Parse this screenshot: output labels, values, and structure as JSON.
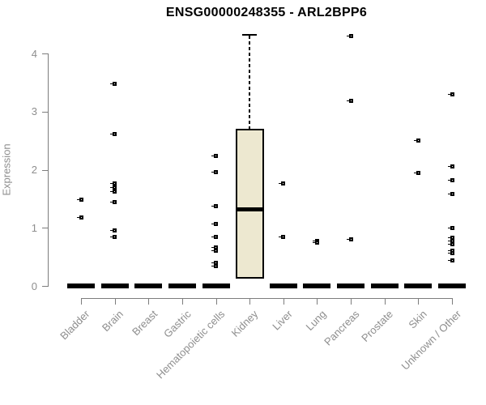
{
  "colors": {
    "title_text": "#000000",
    "axis_line": "#7d7d7d",
    "axis_text": "#8e8e8e",
    "box_fill": "#EDE8D0",
    "box_border": "#000000",
    "point": "#000000",
    "background": "#ffffff"
  },
  "chart_data": {
    "type": "boxplot",
    "title": "ENSG00000248355 - ARL2BPP6",
    "xlabel": "",
    "ylabel": "Expression",
    "ylim": [
      0,
      4.4
    ],
    "yticks": [
      0,
      1,
      2,
      3,
      4
    ],
    "grid": false,
    "legend": false,
    "categories": [
      "Bladder",
      "Brain",
      "Breast",
      "Gastric",
      "Hematopoietic cells",
      "Kidney",
      "Liver",
      "Lung",
      "Pancreas",
      "Prostate",
      "Skin",
      "Unknown / Other"
    ],
    "boxes": [
      {
        "category": "Bladder",
        "q1": 0,
        "median": 0,
        "q3": 0,
        "whisker_low": 0,
        "whisker_high": 0,
        "outliers": [
          1.48,
          1.18
        ]
      },
      {
        "category": "Brain",
        "q1": 0,
        "median": 0,
        "q3": 0,
        "whisker_low": 0,
        "whisker_high": 0,
        "outliers": [
          3.48,
          2.61,
          1.77,
          1.7,
          1.62,
          1.44,
          0.95,
          0.84
        ]
      },
      {
        "category": "Breast",
        "q1": 0,
        "median": 0,
        "q3": 0,
        "whisker_low": 0,
        "whisker_high": 0,
        "outliers": []
      },
      {
        "category": "Gastric",
        "q1": 0,
        "median": 0,
        "q3": 0,
        "whisker_low": 0,
        "whisker_high": 0,
        "outliers": []
      },
      {
        "category": "Hematopoietic cells",
        "q1": 0,
        "median": 0,
        "q3": 0,
        "whisker_low": 0,
        "whisker_high": 0,
        "outliers": [
          2.24,
          1.96,
          1.37,
          1.06,
          0.85,
          0.66,
          0.61,
          0.4,
          0.34
        ]
      },
      {
        "category": "Kidney",
        "q1": 0.12,
        "median": 1.32,
        "q3": 2.71,
        "whisker_low": 0.12,
        "whisker_high": 4.32,
        "outliers": []
      },
      {
        "category": "Liver",
        "q1": 0,
        "median": 0,
        "q3": 0,
        "whisker_low": 0,
        "whisker_high": 0,
        "outliers": [
          1.76,
          0.85
        ]
      },
      {
        "category": "Lung",
        "q1": 0,
        "median": 0,
        "q3": 0,
        "whisker_low": 0,
        "whisker_high": 0,
        "outliers": [
          0.78,
          0.75
        ]
      },
      {
        "category": "Pancreas",
        "q1": 0,
        "median": 0,
        "q3": 0,
        "whisker_low": 0,
        "whisker_high": 0,
        "outliers": [
          4.3,
          3.19,
          0.8
        ]
      },
      {
        "category": "Prostate",
        "q1": 0,
        "median": 0,
        "q3": 0,
        "whisker_low": 0,
        "whisker_high": 0,
        "outliers": []
      },
      {
        "category": "Skin",
        "q1": 0,
        "median": 0,
        "q3": 0,
        "whisker_low": 0,
        "whisker_high": 0,
        "outliers": [
          2.5,
          1.95
        ]
      },
      {
        "category": "Unknown / Other",
        "q1": 0,
        "median": 0,
        "q3": 0,
        "whisker_low": 0,
        "whisker_high": 0,
        "outliers": [
          3.29,
          2.05,
          1.82,
          1.58,
          0.99,
          0.83,
          0.78,
          0.72,
          0.6,
          0.57,
          0.44
        ]
      }
    ]
  }
}
